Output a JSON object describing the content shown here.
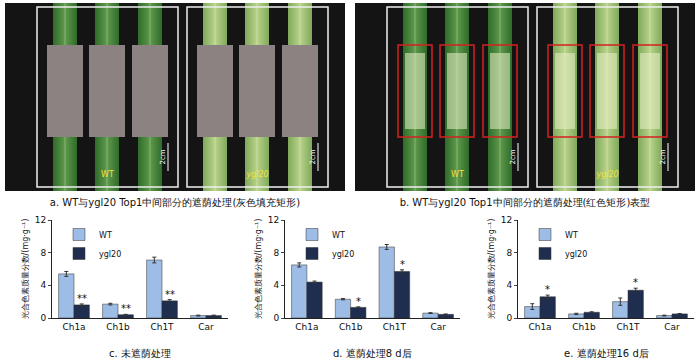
{
  "photos": [
    {
      "caption": "a. WT与ygl20 Top1中间部分的遮荫处理(灰色填充矩形)",
      "labels": [
        "WT",
        "ygl20"
      ],
      "scale": "2cm",
      "marker": "filled"
    },
    {
      "caption": "b. WT与ygl20 Top1中间部分的遮荫处理(红色矩形)表型",
      "labels": [
        "WT",
        "ygl20"
      ],
      "scale": "2cm",
      "marker": "outline"
    }
  ],
  "chart_data": [
    {
      "type": "bar",
      "title": "c. 未遮荫处理",
      "y_label": "光合色素质量分数/(mg·g⁻¹)",
      "categories": [
        "Ch1a",
        "Ch1b",
        "Ch1T",
        "Car"
      ],
      "series": [
        {
          "name": "WT",
          "color": "#9dbde6",
          "values": [
            5.4,
            1.7,
            7.1,
            0.3
          ],
          "errors": [
            0.3,
            0.1,
            0.35,
            0.05
          ]
        },
        {
          "name": "ygl20",
          "color": "#1f2d4f",
          "values": [
            1.6,
            0.4,
            2.1,
            0.3
          ],
          "errors": [
            0.12,
            0.05,
            0.15,
            0.05
          ]
        }
      ],
      "significance": [
        {
          "category": "Ch1a",
          "series": "ygl20",
          "text": "**"
        },
        {
          "category": "Ch1b",
          "series": "ygl20",
          "text": "**"
        },
        {
          "category": "Ch1T",
          "series": "ygl20",
          "text": "**"
        }
      ],
      "ylim": [
        0,
        12
      ],
      "yticks": [
        0,
        4,
        8,
        12
      ],
      "grid": false,
      "legend": "upper left"
    },
    {
      "type": "bar",
      "title": "d. 遮荫处理8 d后",
      "y_label": "光合色素质量分数/(mg·g⁻¹)",
      "categories": [
        "Ch1a",
        "Ch1b",
        "Ch1T",
        "Car"
      ],
      "series": [
        {
          "name": "WT",
          "color": "#9dbde6",
          "values": [
            6.5,
            2.3,
            8.7,
            0.6
          ],
          "errors": [
            0.25,
            0.08,
            0.3,
            0.05
          ]
        },
        {
          "name": "ygl20",
          "color": "#1f2d4f",
          "values": [
            4.4,
            1.3,
            5.7,
            0.45
          ],
          "errors": [
            0.12,
            0.06,
            0.2,
            0.04
          ]
        }
      ],
      "significance": [
        {
          "category": "Ch1b",
          "series": "ygl20",
          "text": "*"
        },
        {
          "category": "Ch1T",
          "series": "ygl20",
          "text": "*"
        }
      ],
      "ylim": [
        0,
        12
      ],
      "yticks": [
        0,
        4,
        8,
        12
      ],
      "grid": false,
      "legend": "upper left"
    },
    {
      "type": "bar",
      "title": "e. 遮荫处理16 d后",
      "y_label": "光合色素质量分数/(mg·g⁻¹)",
      "categories": [
        "Ch1a",
        "Ch1b",
        "Ch1T",
        "Car"
      ],
      "series": [
        {
          "name": "WT",
          "color": "#9dbde6",
          "values": [
            1.4,
            0.5,
            2.0,
            0.3
          ],
          "errors": [
            0.35,
            0.08,
            0.45,
            0.05
          ]
        },
        {
          "name": "ygl20",
          "color": "#1f2d4f",
          "values": [
            2.6,
            0.7,
            3.4,
            0.5
          ],
          "errors": [
            0.2,
            0.06,
            0.25,
            0.05
          ]
        }
      ],
      "significance": [
        {
          "category": "Ch1a",
          "series": "ygl20",
          "text": "*"
        },
        {
          "category": "Ch1T",
          "series": "ygl20",
          "text": "*"
        }
      ],
      "ylim": [
        0,
        12
      ],
      "yticks": [
        0,
        4,
        8,
        12
      ],
      "grid": false,
      "legend": "upper left"
    }
  ]
}
